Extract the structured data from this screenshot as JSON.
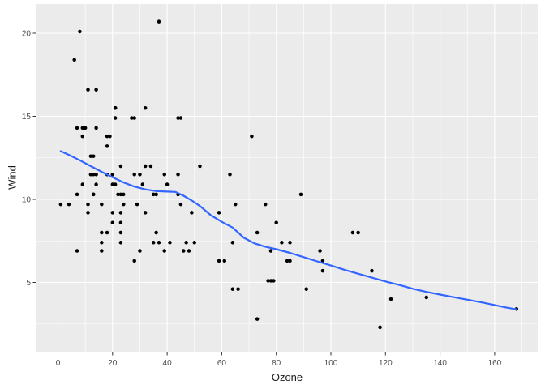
{
  "chart_data": {
    "type": "scatter",
    "title": "",
    "xlabel": "Ozone",
    "ylabel": "Wind",
    "x_ticks": [
      0,
      20,
      40,
      60,
      80,
      100,
      120,
      140,
      160
    ],
    "y_ticks": [
      5,
      10,
      15,
      20
    ],
    "x_minor_ticks": [
      10,
      30,
      50,
      70,
      90,
      110,
      130,
      150,
      170
    ],
    "y_minor_ticks": [
      2.5,
      7.5,
      12.5,
      17.5
    ],
    "xlim": [
      1,
      168
    ],
    "ylim": [
      2.3,
      20.7
    ],
    "grid": "major and minor, white on grey panel",
    "legend": "none",
    "series": [
      {
        "name": "observations",
        "type": "points",
        "color": "#000000",
        "points": [
          [
            41,
            7.4
          ],
          [
            36,
            8.0
          ],
          [
            12,
            12.6
          ],
          [
            18,
            11.5
          ],
          [
            28,
            14.9
          ],
          [
            23,
            8.6
          ],
          [
            19,
            13.8
          ],
          [
            8,
            20.1
          ],
          [
            7,
            6.9
          ],
          [
            16,
            9.7
          ],
          [
            11,
            9.2
          ],
          [
            14,
            10.9
          ],
          [
            18,
            13.2
          ],
          [
            14,
            11.5
          ],
          [
            34,
            12.0
          ],
          [
            6,
            18.4
          ],
          [
            30,
            11.5
          ],
          [
            11,
            9.7
          ],
          [
            1,
            9.7
          ],
          [
            11,
            16.6
          ],
          [
            4,
            9.7
          ],
          [
            32,
            12.0
          ],
          [
            23,
            12.0
          ],
          [
            45,
            14.9
          ],
          [
            115,
            5.7
          ],
          [
            37,
            7.4
          ],
          [
            29,
            9.7
          ],
          [
            71,
            13.8
          ],
          [
            39,
            11.5
          ],
          [
            23,
            8.0
          ],
          [
            21,
            14.9
          ],
          [
            37,
            20.7
          ],
          [
            20,
            9.2
          ],
          [
            12,
            11.5
          ],
          [
            13,
            10.3
          ],
          [
            135,
            4.1
          ],
          [
            49,
            9.2
          ],
          [
            32,
            9.2
          ],
          [
            64,
            4.6
          ],
          [
            40,
            10.9
          ],
          [
            77,
            5.1
          ],
          [
            97,
            6.3
          ],
          [
            97,
            5.7
          ],
          [
            85,
            7.4
          ],
          [
            10,
            14.3
          ],
          [
            27,
            14.9
          ],
          [
            7,
            14.3
          ],
          [
            48,
            6.9
          ],
          [
            35,
            10.3
          ],
          [
            61,
            6.3
          ],
          [
            79,
            5.1
          ],
          [
            63,
            11.5
          ],
          [
            16,
            6.9
          ],
          [
            80,
            8.6
          ],
          [
            108,
            8.0
          ],
          [
            20,
            8.6
          ],
          [
            52,
            12.0
          ],
          [
            82,
            7.4
          ],
          [
            50,
            7.4
          ],
          [
            64,
            7.4
          ],
          [
            59,
            9.2
          ],
          [
            39,
            6.9
          ],
          [
            9,
            13.8
          ],
          [
            16,
            7.4
          ],
          [
            78,
            6.9
          ],
          [
            35,
            7.4
          ],
          [
            66,
            4.6
          ],
          [
            122,
            4.0
          ],
          [
            89,
            10.3
          ],
          [
            110,
            8.0
          ],
          [
            44,
            11.5
          ],
          [
            28,
            11.5
          ],
          [
            65,
            9.7
          ],
          [
            22,
            10.3
          ],
          [
            59,
            6.3
          ],
          [
            23,
            7.4
          ],
          [
            31,
            10.9
          ],
          [
            44,
            10.3
          ],
          [
            21,
            15.5
          ],
          [
            9,
            14.3
          ],
          [
            45,
            9.7
          ],
          [
            168,
            3.4
          ],
          [
            73,
            8.0
          ],
          [
            76,
            9.7
          ],
          [
            118,
            2.3
          ],
          [
            84,
            6.3
          ],
          [
            85,
            6.3
          ],
          [
            96,
            6.9
          ],
          [
            78,
            5.1
          ],
          [
            73,
            2.8
          ],
          [
            91,
            4.6
          ],
          [
            47,
            7.4
          ],
          [
            32,
            15.5
          ],
          [
            20,
            10.9
          ],
          [
            23,
            10.3
          ],
          [
            21,
            10.9
          ],
          [
            24,
            9.7
          ],
          [
            44,
            14.9
          ],
          [
            21,
            15.5
          ],
          [
            28,
            6.3
          ],
          [
            9,
            10.9
          ],
          [
            13,
            11.5
          ],
          [
            46,
            6.9
          ],
          [
            18,
            13.8
          ],
          [
            13,
            10.3
          ],
          [
            24,
            10.3
          ],
          [
            16,
            8.0
          ],
          [
            13,
            12.6
          ],
          [
            23,
            9.2
          ],
          [
            36,
            10.3
          ],
          [
            7,
            10.3
          ],
          [
            14,
            16.6
          ],
          [
            30,
            6.9
          ],
          [
            14,
            14.3
          ],
          [
            18,
            8.0
          ],
          [
            20,
            11.5
          ]
        ]
      },
      {
        "name": "loess-smooth",
        "type": "line",
        "color": "#3366FF",
        "points": [
          [
            1,
            12.9
          ],
          [
            4,
            12.68
          ],
          [
            8,
            12.35
          ],
          [
            12,
            12.0
          ],
          [
            16,
            11.66
          ],
          [
            20,
            11.33
          ],
          [
            24,
            11.02
          ],
          [
            28,
            10.77
          ],
          [
            32,
            10.6
          ],
          [
            36,
            10.5
          ],
          [
            40,
            10.47
          ],
          [
            43,
            10.45
          ],
          [
            46,
            10.22
          ],
          [
            49,
            9.93
          ],
          [
            52,
            9.6
          ],
          [
            56,
            9.05
          ],
          [
            60,
            8.65
          ],
          [
            64,
            8.3
          ],
          [
            68,
            7.7
          ],
          [
            72,
            7.35
          ],
          [
            76,
            7.15
          ],
          [
            80,
            7.0
          ],
          [
            85,
            6.78
          ],
          [
            90,
            6.52
          ],
          [
            95,
            6.27
          ],
          [
            100,
            6.02
          ],
          [
            105,
            5.76
          ],
          [
            110,
            5.52
          ],
          [
            115,
            5.29
          ],
          [
            120,
            5.06
          ],
          [
            125,
            4.85
          ],
          [
            130,
            4.62
          ],
          [
            135,
            4.43
          ],
          [
            140,
            4.27
          ],
          [
            145,
            4.11
          ],
          [
            150,
            3.96
          ],
          [
            155,
            3.81
          ],
          [
            160,
            3.64
          ],
          [
            164,
            3.5
          ],
          [
            168,
            3.38
          ]
        ]
      }
    ]
  },
  "style": {
    "page_bg": "#FFFFFF",
    "panel_bg": "#EBEBEB",
    "grid_color": "#FFFFFF",
    "tick_mark_color": "#333333",
    "tick_label_color": "#4D4D4D",
    "axis_title_color": "#1A1A1A",
    "point_color": "#000000",
    "smooth_color": "#3366FF"
  }
}
